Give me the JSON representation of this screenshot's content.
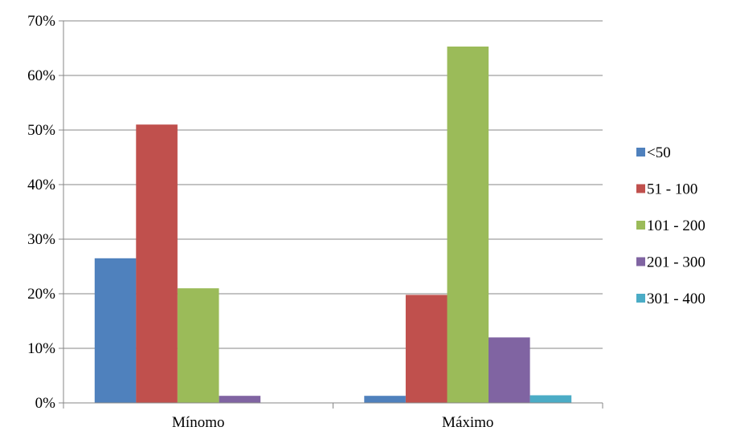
{
  "chart_data": {
    "type": "bar",
    "categories": [
      "Mínomo",
      "Máximo"
    ],
    "series": [
      {
        "name": "<50",
        "color": "#4F81BD",
        "values": [
          26.5,
          1.3
        ]
      },
      {
        "name": "51 - 100",
        "color": "#C0504D",
        "values": [
          51.0,
          19.8
        ]
      },
      {
        "name": "101 - 200",
        "color": "#9BBB59",
        "values": [
          21.0,
          65.3
        ]
      },
      {
        "name": "201 - 300",
        "color": "#8064A2",
        "values": [
          1.3,
          12.0
        ]
      },
      {
        "name": "301 - 400",
        "color": "#4BACC6",
        "values": [
          0,
          1.4
        ]
      }
    ],
    "ylim": [
      0,
      70
    ],
    "yticks": [
      0,
      10,
      20,
      30,
      40,
      50,
      60,
      70
    ],
    "ytick_format": "percent",
    "grid": true,
    "legend": "right",
    "title": "",
    "xlabel": "",
    "ylabel": ""
  }
}
